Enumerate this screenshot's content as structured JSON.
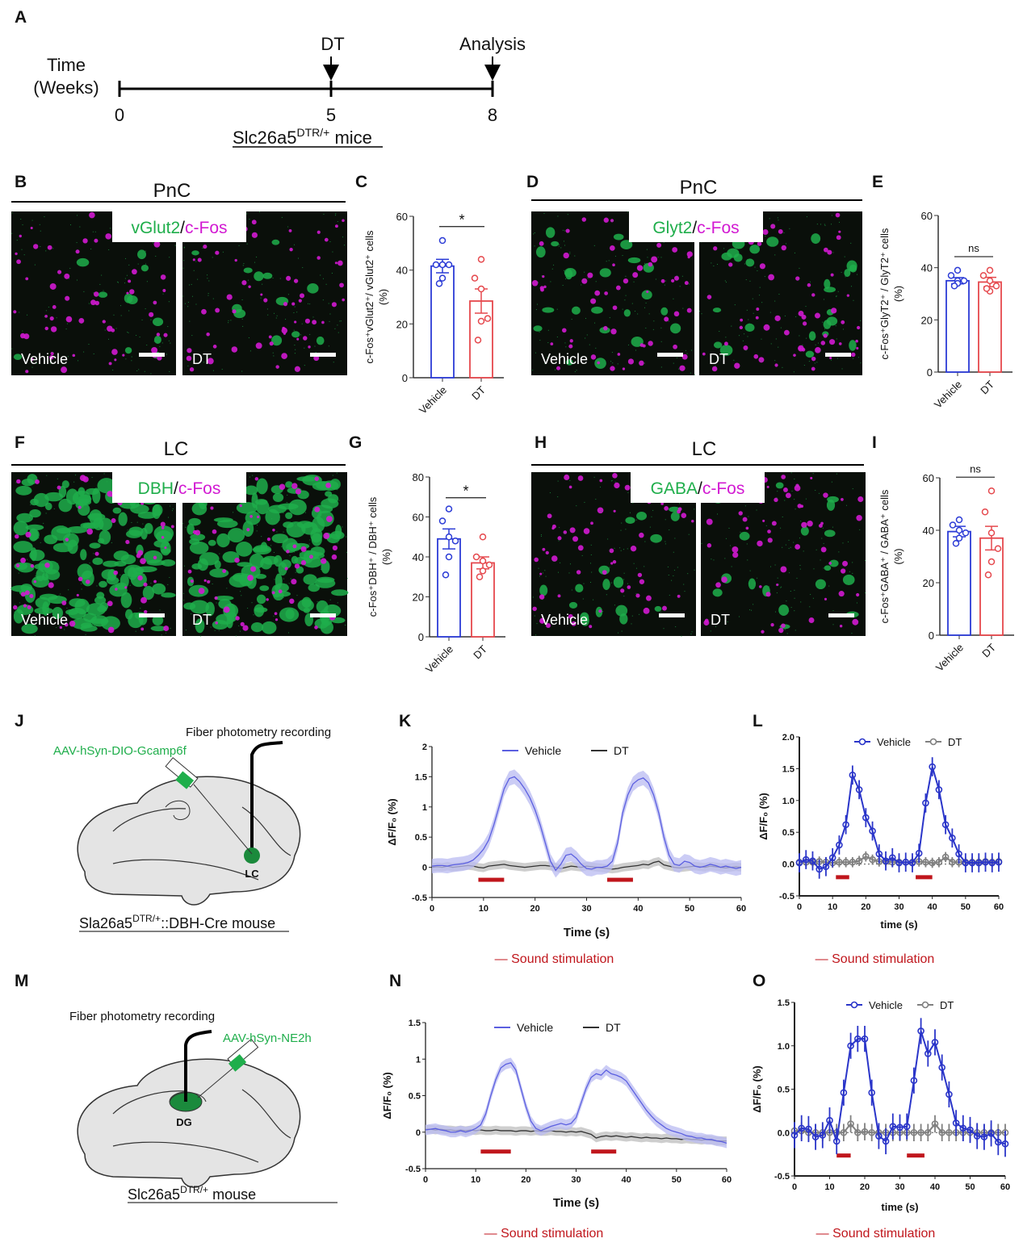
{
  "panels": {
    "A": "A",
    "B": "B",
    "C": "C",
    "D": "D",
    "E": "E",
    "F": "F",
    "G": "G",
    "H": "H",
    "I": "I",
    "J": "J",
    "K": "K",
    "L": "L",
    "M": "M",
    "N": "N",
    "O": "O"
  },
  "timeline": {
    "axis_label_1": "Time",
    "axis_label_2": "(Weeks)",
    "ticks": [
      "0",
      "5",
      "8"
    ],
    "event_dt": "DT",
    "event_analysis": "Analysis",
    "mouse_main": "Slc26a5",
    "mouse_sup": "DTR/+",
    "mouse_suffix": " mice"
  },
  "microscopy": {
    "B": {
      "region": "PnC",
      "marker": "vGlut2",
      "sep": "/",
      "cfos": "c-Fos",
      "left": "Vehicle",
      "right": "DT"
    },
    "D": {
      "region": "PnC",
      "marker": "Glyt2",
      "sep": "/",
      "cfos": "c-Fos",
      "left": "Vehicle",
      "right": "DT"
    },
    "F": {
      "region": "LC",
      "marker": "DBH",
      "sep": "/",
      "cfos": "c-Fos",
      "left": "Vehicle",
      "right": "DT"
    },
    "H": {
      "region": "LC",
      "marker": "GABA",
      "sep": "/",
      "cfos": "c-Fos",
      "left": "Vehicle",
      "right": "DT"
    }
  },
  "diagrams": {
    "J": {
      "recording": "Fiber photometry recording",
      "virus": "AAV-hSyn-DIO-Gcamp6f",
      "site": "LC",
      "mouse_main": "Sla26a5",
      "mouse_sup": "DTR/+",
      "mouse_suffix": "::DBH-Cre mouse"
    },
    "M": {
      "recording": "Fiber photometry recording",
      "virus": "AAV-hSyn-NE2h",
      "site": "DG",
      "mouse_main": "Slc26a5",
      "mouse_sup": "DTR/+",
      "mouse_suffix": " mouse"
    }
  },
  "colors": {
    "vehicle": "#2b3bd6",
    "dt_bar": "#e5484d",
    "dt_line": "#808080",
    "stim": "#c0161c",
    "green": "#1fae4b",
    "magenta": "#d21ad2"
  },
  "chart_data": [
    {
      "id": "C",
      "type": "bar",
      "ylabel": "c-Fos⁺vGlut2⁺/ vGlut2⁺ cells",
      "ylabel2": "(%)",
      "ylim": [
        0,
        60
      ],
      "yticks": [
        "0",
        "20",
        "40",
        "60"
      ],
      "categories": [
        "Vehicle",
        "DT"
      ],
      "series": [
        {
          "name": "Vehicle",
          "mean": 41.5,
          "sem": 2.5,
          "points": [
            51,
            42,
            42,
            42,
            37,
            35
          ]
        },
        {
          "name": "DT",
          "mean": 28.5,
          "sem": 4.5,
          "points": [
            44,
            37,
            33,
            22,
            21,
            14
          ]
        }
      ],
      "significance": "*"
    },
    {
      "id": "E",
      "type": "bar",
      "ylabel": "c-Fos⁺GlyT2⁺ / GlyT2⁺ cells",
      "ylabel2": "(%)",
      "ylim": [
        0,
        60
      ],
      "yticks": [
        "0",
        "20",
        "40",
        "60"
      ],
      "categories": [
        "Vehicle",
        "DT"
      ],
      "series": [
        {
          "name": "Vehicle",
          "mean": 35,
          "sem": 1.2,
          "points": [
            39,
            37,
            35,
            35,
            34,
            33
          ]
        },
        {
          "name": "DT",
          "mean": 34.5,
          "sem": 1.8,
          "points": [
            39,
            37,
            35,
            33,
            31,
            32
          ]
        }
      ],
      "significance": "ns"
    },
    {
      "id": "G",
      "type": "bar",
      "ylabel": "c-Fos⁺DBH⁺ / DBH⁺ cells",
      "ylabel2": "(%)",
      "ylim": [
        0,
        80
      ],
      "yticks": [
        "0",
        "20",
        "40",
        "60",
        "80"
      ],
      "categories": [
        "Vehicle",
        "DT"
      ],
      "series": [
        {
          "name": "Vehicle",
          "mean": 49,
          "sem": 5,
          "points": [
            64,
            58,
            50,
            48,
            40,
            31
          ]
        },
        {
          "name": "DT",
          "mean": 37,
          "sem": 3,
          "points": [
            50,
            40,
            38,
            36,
            33,
            30
          ]
        }
      ],
      "significance": "*"
    },
    {
      "id": "I",
      "type": "bar",
      "ylabel": "c-Fos⁺GABA⁺ / GABA⁺ cells",
      "ylabel2": "(%)",
      "ylim": [
        0,
        60
      ],
      "yticks": [
        "0",
        "20",
        "40",
        "60"
      ],
      "categories": [
        "Vehicle",
        "DT"
      ],
      "series": [
        {
          "name": "Vehicle",
          "mean": 39.5,
          "sem": 2,
          "points": [
            44,
            42,
            40,
            39,
            37,
            35
          ]
        },
        {
          "name": "DT",
          "mean": 37,
          "sem": 4.5,
          "points": [
            55,
            47,
            39,
            33,
            28,
            23
          ]
        }
      ],
      "significance": "ns"
    },
    {
      "id": "K",
      "type": "line",
      "style": "band",
      "xlabel": "Time (s)",
      "ylabel": "ΔF/F₀ (%)",
      "xlim": [
        0,
        60
      ],
      "ylim": [
        -0.5,
        2
      ],
      "xticks": [
        "0",
        "10",
        "20",
        "30",
        "40",
        "50",
        "60"
      ],
      "yticks": [
        "-0.5",
        "0",
        "0.5",
        "1",
        "1.5",
        "2"
      ],
      "xstep": 1,
      "series": [
        {
          "name": "Vehicle",
          "sem": 0.12,
          "values": [
            0.02,
            0.03,
            0.03,
            0.02,
            0.04,
            0.05,
            0.06,
            0.08,
            0.12,
            0.2,
            0.3,
            0.45,
            0.7,
            1.0,
            1.3,
            1.47,
            1.5,
            1.42,
            1.3,
            1.15,
            0.95,
            0.7,
            0.4,
            0.1,
            -0.05,
            0.05,
            0.2,
            0.22,
            0.15,
            0.05,
            -0.02,
            -0.03,
            0,
            0,
            0.02,
            0.1,
            0.4,
            0.9,
            1.2,
            1.38,
            1.45,
            1.48,
            1.4,
            1.2,
            0.9,
            0.5,
            0.2,
            0.05,
            0.03,
            0.1,
            0.08,
            0.02,
            0,
            0.02,
            0.05,
            0.03,
            0,
            0.02,
            0,
            -0.02,
            0
          ]
        },
        {
          "name": "DT",
          "sem": 0.07,
          "values": [
            0,
            0.01,
            0,
            0.02,
            0,
            0.01,
            0.02,
            0.03,
            0.02,
            0,
            -0.01,
            0.02,
            0.03,
            0.04,
            0.05,
            0.03,
            0.02,
            0.01,
            0,
            0.01,
            0.02,
            0.03,
            0.03,
            0.02,
            0,
            -0.02,
            0,
            0.02,
            0.01,
            0,
            0.02,
            0.01,
            0,
            -0.01,
            -0.02,
            -0.03,
            -0.02,
            0,
            0.01,
            0.02,
            0.03,
            0.05,
            0.04,
            0.08,
            0.1,
            0.04,
            0.02,
            0,
            -0.01,
            0,
            0.01,
            0.02,
            0.01,
            0,
            0.02,
            0.01,
            0,
            -0.01,
            0,
            0.01,
            0
          ]
        }
      ],
      "stimulus": {
        "label": "— Sound stimulation",
        "intervals": [
          [
            9,
            14
          ],
          [
            34,
            39
          ]
        ]
      }
    },
    {
      "id": "L",
      "type": "line",
      "style": "markers",
      "xlabel": "time (s)",
      "ylabel": "ΔF/F₀ (%)",
      "xlim": [
        0,
        60
      ],
      "ylim": [
        -0.5,
        2
      ],
      "xticks": [
        "0",
        "10",
        "20",
        "30",
        "40",
        "50",
        "60"
      ],
      "yticks": [
        "-0.5",
        "0.0",
        "0.5",
        "1.0",
        "1.5",
        "2.0"
      ],
      "xstep": 2,
      "series": [
        {
          "name": "Vehicle",
          "sem": 0.15,
          "values": [
            0.02,
            0.07,
            0.05,
            -0.08,
            -0.04,
            0.1,
            0.3,
            0.62,
            1.4,
            1.17,
            0.73,
            0.52,
            0.16,
            0.05,
            0.1,
            0.02,
            0.03,
            0.02,
            0.17,
            0.96,
            1.53,
            1.17,
            0.62,
            0.41,
            0.16,
            0.02,
            0.02,
            0.02,
            0.03,
            0.02,
            0.03
          ]
        },
        {
          "name": "DT",
          "sem": 0.08,
          "values": [
            0.03,
            0.03,
            0.03,
            0.04,
            0.03,
            0.02,
            0.03,
            0.03,
            0.03,
            0.05,
            0.12,
            0.07,
            0.04,
            0.04,
            0.03,
            0.03,
            0.03,
            0.03,
            0.04,
            0.03,
            0.02,
            0.03,
            0.11,
            0.03,
            0.03,
            0.03,
            0.03,
            0.03,
            0.04,
            0.03,
            0.04
          ]
        }
      ],
      "stimulus": {
        "label": "— Sound stimulation",
        "intervals": [
          [
            11,
            15
          ],
          [
            35,
            40
          ]
        ]
      }
    },
    {
      "id": "N",
      "type": "line",
      "style": "band",
      "xlabel": "Time (s)",
      "ylabel": "ΔF/F₀ (%)",
      "xlim": [
        0,
        60
      ],
      "ylim": [
        -0.5,
        1.5
      ],
      "xticks": [
        "0",
        "10",
        "20",
        "30",
        "40",
        "50",
        "60"
      ],
      "yticks": [
        "-0.5",
        "0",
        "0.5",
        "1",
        "1.5"
      ],
      "xstep": 1,
      "series": [
        {
          "name": "Vehicle",
          "sem": 0.07,
          "values": [
            0.03,
            0.04,
            0.05,
            0.03,
            0.02,
            0,
            0,
            0.02,
            0,
            0.02,
            0.05,
            0.1,
            0.25,
            0.5,
            0.72,
            0.88,
            0.93,
            0.95,
            0.85,
            0.6,
            0.35,
            0.15,
            0.05,
            0.02,
            0.05,
            0.08,
            0.1,
            0.12,
            0.1,
            0.12,
            0.2,
            0.4,
            0.6,
            0.75,
            0.8,
            0.78,
            0.85,
            0.8,
            0.78,
            0.75,
            0.7,
            0.6,
            0.5,
            0.4,
            0.3,
            0.22,
            0.15,
            0.1,
            0.05,
            0.02,
            0,
            -0.02,
            -0.05,
            -0.06,
            -0.08,
            -0.08,
            -0.1,
            -0.1,
            -0.12,
            -0.13,
            -0.15
          ]
        },
        {
          "name": "DT",
          "sem": 0.06,
          "values": [
            0.04,
            0.04,
            0.03,
            0.04,
            0.03,
            0.03,
            0.02,
            0.03,
            0.02,
            0.03,
            0.02,
            0.03,
            0.02,
            0.02,
            0.03,
            0.02,
            0.02,
            0.02,
            0.01,
            0.02,
            0.02,
            0.01,
            0.02,
            0.01,
            0.01,
            0.02,
            0.01,
            0.01,
            0,
            0.01,
            0,
            0.01,
            -0.01,
            -0.03,
            -0.08,
            -0.06,
            -0.05,
            -0.06,
            -0.05,
            -0.06,
            -0.07,
            -0.06,
            -0.07,
            -0.08,
            -0.07,
            -0.08,
            -0.08,
            -0.09,
            -0.08,
            -0.09,
            -0.09,
            -0.1,
            -0.09,
            -0.1,
            -0.1,
            -0.11,
            -0.1,
            -0.11,
            -0.12,
            -0.12,
            -0.12
          ]
        }
      ],
      "stimulus": {
        "label": "— Sound stimulation",
        "intervals": [
          [
            11,
            17
          ],
          [
            33,
            38
          ]
        ]
      }
    },
    {
      "id": "O",
      "type": "line",
      "style": "markers",
      "xlabel": "time (s)",
      "ylabel": "ΔF/F₀ (%)",
      "xlim": [
        0,
        60
      ],
      "ylim": [
        -0.5,
        1.5
      ],
      "xticks": [
        "0",
        "10",
        "20",
        "30",
        "40",
        "50",
        "60"
      ],
      "yticks": [
        "-0.5",
        "0.0",
        "0.5",
        "1.0",
        "1.5"
      ],
      "xstep": 2,
      "series": [
        {
          "name": "Vehicle",
          "sem": 0.15,
          "values": [
            -0.03,
            0.05,
            0.04,
            -0.05,
            -0.03,
            0.14,
            -0.1,
            0.46,
            1.0,
            1.08,
            1.08,
            0.46,
            -0.04,
            -0.1,
            0.07,
            0.06,
            0.07,
            0.6,
            1.17,
            0.91,
            1.04,
            0.75,
            0.44,
            0.11,
            0.05,
            0.03,
            -0.04,
            -0.05,
            -0.01,
            -0.11,
            -0.13
          ]
        },
        {
          "name": "DT",
          "sem": 0.1,
          "values": [
            0.02,
            0.02,
            0,
            0,
            0,
            0,
            0,
            0,
            0.1,
            0,
            0.01,
            0,
            0,
            0,
            0,
            0,
            0,
            0,
            0,
            0,
            0.1,
            0,
            0,
            0,
            0,
            0,
            0,
            0,
            0,
            0,
            0
          ]
        }
      ],
      "stimulus": {
        "label": "— Sound stimulation",
        "intervals": [
          [
            12,
            16
          ],
          [
            32,
            37
          ]
        ]
      }
    }
  ]
}
